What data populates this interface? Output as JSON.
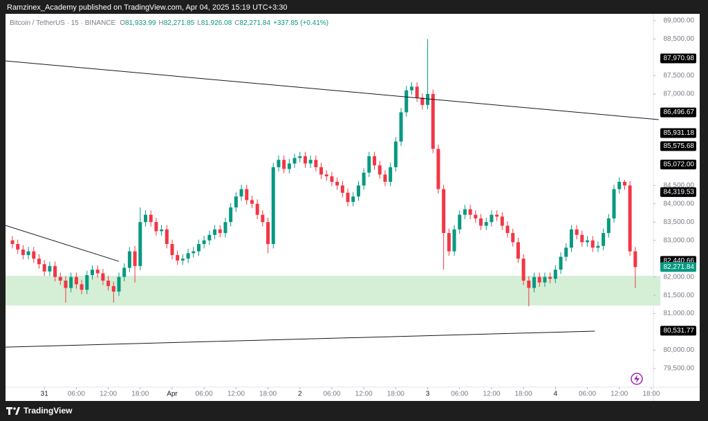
{
  "chart_data": {
    "type": "candlestick",
    "title": "Ramzinex_Academy published on TradingView.com, Apr 04, 2025 15:19 UTC+3:30",
    "symbol": "Bitcoin / TetherUS · 15 · BINANCE",
    "ohlc_legend": [
      {
        "key": "O",
        "value": "81,933.99"
      },
      {
        "key": "H",
        "value": "82,271.85"
      },
      {
        "key": "L",
        "value": "81,926.08"
      },
      {
        "key": "C",
        "value": "82,271.84"
      }
    ],
    "change": "+337.85 (+0.41%)",
    "brand": "TradingView",
    "up_color": "#089981",
    "down_color": "#f23645",
    "xlim": [
      -1.3,
      120.4
    ],
    "ylim": [
      78990,
      89190
    ],
    "xticks": [
      {
        "value": 6,
        "label": "31"
      },
      {
        "value": 12,
        "label": "06:00"
      },
      {
        "value": 18,
        "label": "12:00"
      },
      {
        "value": 24,
        "label": "18:00"
      },
      {
        "value": 30,
        "label": "Apr"
      },
      {
        "value": 36,
        "label": "06:00"
      },
      {
        "value": 42,
        "label": "12:00"
      },
      {
        "value": 48,
        "label": "18:00"
      },
      {
        "value": 54,
        "label": "2"
      },
      {
        "value": 60,
        "label": "06:00"
      },
      {
        "value": 66,
        "label": "12:00"
      },
      {
        "value": 72,
        "label": "18:00"
      },
      {
        "value": 78,
        "label": "3"
      },
      {
        "value": 84,
        "label": "06:00"
      },
      {
        "value": 90,
        "label": "12:00"
      },
      {
        "value": 96,
        "label": "18:00"
      },
      {
        "value": 102,
        "label": "4"
      },
      {
        "value": 108,
        "label": "06:00"
      },
      {
        "value": 114,
        "label": "12:00"
      },
      {
        "value": 120,
        "label": "18:00"
      }
    ],
    "yticks": [
      {
        "value": 89000,
        "label": "89,000.00"
      },
      {
        "value": 88500,
        "label": "88,500.00"
      },
      {
        "value": 87500,
        "label": "87,500.00"
      },
      {
        "value": 87000,
        "label": "87,000.00"
      },
      {
        "value": 84500,
        "label": "84,500.00"
      },
      {
        "value": 84000,
        "label": "84,000.00"
      },
      {
        "value": 83500,
        "label": "83,500.00"
      },
      {
        "value": 83000,
        "label": "83,000.00"
      },
      {
        "value": 82000,
        "label": "82,000.00"
      },
      {
        "value": 81500,
        "label": "81,500.00"
      },
      {
        "value": 81000,
        "label": "81,000.00"
      },
      {
        "value": 80000,
        "label": "80,000.00"
      },
      {
        "value": 79500,
        "label": "79,500.00"
      }
    ],
    "price_labels": [
      {
        "value": 87970.98,
        "label": "87,970.98"
      },
      {
        "value": 86496.67,
        "label": "86,496.67"
      },
      {
        "value": 85931.18,
        "label": "85,931.18"
      },
      {
        "value": 85575.68,
        "label": "85,575.68"
      },
      {
        "value": 85072,
        "label": "85,072.00"
      },
      {
        "value": 84319.53,
        "label": "84,319.53"
      },
      {
        "value": 82440.66,
        "label": "82,440.66"
      },
      {
        "value": 80531.77,
        "label": "80,531.77"
      }
    ],
    "last_price": {
      "value": 82271.84,
      "label": "82,271.84",
      "color": "#089981"
    },
    "zone": {
      "low": 81220,
      "high": 82030,
      "color": "#d4efd6"
    },
    "trendlines": [
      {
        "start": [
          -1.3,
          87904
        ],
        "end": [
          121.4,
          86299
        ]
      },
      {
        "start": [
          -1.3,
          83409
        ],
        "end": [
          20,
          82427
        ]
      },
      {
        "start": [
          -1.3,
          80084
        ],
        "end": [
          109.4,
          80519
        ]
      }
    ],
    "candles": [
      [
        83000,
        83120,
        82780,
        82900
      ],
      [
        82900,
        83020,
        82630,
        82750
      ],
      [
        82750,
        82870,
        82480,
        82600
      ],
      [
        82600,
        82820,
        82480,
        82700
      ],
      [
        82700,
        82820,
        82380,
        82500
      ],
      [
        82500,
        82620,
        82230,
        82350
      ],
      [
        82350,
        82470,
        82030,
        82150
      ],
      [
        82150,
        82420,
        82030,
        82300
      ],
      [
        82300,
        82420,
        81880,
        82000
      ],
      [
        82000,
        82120,
        81780,
        81900
      ],
      [
        81900,
        82020,
        81300,
        81700
      ],
      [
        81700,
        82120,
        81580,
        82000
      ],
      [
        82000,
        82120,
        81680,
        81800
      ],
      [
        81800,
        81920,
        81530,
        81650
      ],
      [
        81650,
        82170,
        81530,
        82050
      ],
      [
        82050,
        82320,
        81930,
        82200
      ],
      [
        82200,
        82320,
        81980,
        82100
      ],
      [
        82100,
        82220,
        81780,
        81900
      ],
      [
        81900,
        82020,
        81630,
        81750
      ],
      [
        81750,
        81870,
        81300,
        81600
      ],
      [
        81600,
        82120,
        81480,
        82000
      ],
      [
        82000,
        82370,
        81880,
        82250
      ],
      [
        82250,
        82820,
        82130,
        82700
      ],
      [
        82700,
        82850,
        81850,
        82300
      ],
      [
        82300,
        83900,
        82180,
        83500
      ],
      [
        83500,
        83820,
        83380,
        83700
      ],
      [
        83700,
        83820,
        83380,
        83500
      ],
      [
        83500,
        83620,
        83130,
        83250
      ],
      [
        83250,
        83420,
        83130,
        83300
      ],
      [
        83300,
        83420,
        82780,
        82900
      ],
      [
        82900,
        83020,
        82480,
        82600
      ],
      [
        82600,
        82720,
        82330,
        82450
      ],
      [
        82450,
        82620,
        82330,
        82500
      ],
      [
        82500,
        82770,
        82380,
        82650
      ],
      [
        82650,
        82820,
        82530,
        82700
      ],
      [
        82700,
        83020,
        82580,
        82900
      ],
      [
        82900,
        83120,
        82780,
        83000
      ],
      [
        83000,
        83270,
        82880,
        83150
      ],
      [
        83150,
        83420,
        83030,
        83300
      ],
      [
        83300,
        83420,
        83080,
        83200
      ],
      [
        83200,
        83620,
        83080,
        83500
      ],
      [
        83500,
        84020,
        83380,
        83900
      ],
      [
        83900,
        84320,
        83780,
        84200
      ],
      [
        84200,
        84520,
        84080,
        84400
      ],
      [
        84400,
        84520,
        83980,
        84100
      ],
      [
        84100,
        84220,
        83880,
        84000
      ],
      [
        84000,
        84120,
        83580,
        83700
      ],
      [
        83700,
        83820,
        83380,
        83500
      ],
      [
        83500,
        83620,
        82650,
        82900
      ],
      [
        82900,
        85120,
        82780,
        85000
      ],
      [
        85000,
        85320,
        84880,
        85200
      ],
      [
        85200,
        85320,
        84830,
        84950
      ],
      [
        84950,
        85220,
        84830,
        85100
      ],
      [
        85100,
        85370,
        84980,
        85250
      ],
      [
        85250,
        85420,
        85130,
        85300
      ],
      [
        85300,
        85420,
        84980,
        85100
      ],
      [
        85100,
        85320,
        84980,
        85200
      ],
      [
        85200,
        85320,
        84880,
        85000
      ],
      [
        85000,
        85120,
        84680,
        84800
      ],
      [
        84800,
        84920,
        84630,
        84750
      ],
      [
        84750,
        84870,
        84480,
        84600
      ],
      [
        84600,
        84720,
        84380,
        84500
      ],
      [
        84500,
        84620,
        84180,
        84300
      ],
      [
        84300,
        84420,
        83930,
        84050
      ],
      [
        84050,
        84320,
        83930,
        84200
      ],
      [
        84200,
        84620,
        84080,
        84500
      ],
      [
        84500,
        84970,
        84380,
        84850
      ],
      [
        84850,
        85420,
        84730,
        85300
      ],
      [
        85300,
        85420,
        84930,
        85050
      ],
      [
        85050,
        85170,
        84680,
        84800
      ],
      [
        84800,
        84920,
        84480,
        84600
      ],
      [
        84600,
        85120,
        84480,
        85000
      ],
      [
        85000,
        85820,
        84880,
        85700
      ],
      [
        85700,
        86620,
        85580,
        86500
      ],
      [
        86500,
        87220,
        86380,
        87100
      ],
      [
        87100,
        87320,
        86980,
        87200
      ],
      [
        87200,
        87320,
        86780,
        86900
      ],
      [
        86900,
        87020,
        86580,
        86700
      ],
      [
        86700,
        88500,
        86580,
        87000
      ],
      [
        87000,
        87120,
        85380,
        85500
      ],
      [
        85500,
        85620,
        84280,
        84400
      ],
      [
        84400,
        84520,
        82200,
        83200
      ],
      [
        83200,
        83320,
        82580,
        82700
      ],
      [
        82700,
        83420,
        82580,
        83300
      ],
      [
        83300,
        83820,
        83180,
        83700
      ],
      [
        83700,
        83970,
        83580,
        83850
      ],
      [
        83850,
        83970,
        83580,
        83700
      ],
      [
        83700,
        83820,
        83480,
        83600
      ],
      [
        83600,
        83720,
        83280,
        83400
      ],
      [
        83400,
        83620,
        83280,
        83500
      ],
      [
        83500,
        83820,
        83380,
        83700
      ],
      [
        83700,
        83820,
        83530,
        83650
      ],
      [
        83650,
        83770,
        83280,
        83400
      ],
      [
        83400,
        83520,
        83080,
        83200
      ],
      [
        83200,
        83320,
        82830,
        82950
      ],
      [
        82950,
        83070,
        82380,
        82500
      ],
      [
        82500,
        82620,
        81780,
        81900
      ],
      [
        81900,
        82020,
        81200,
        81700
      ],
      [
        81700,
        82120,
        81580,
        82000
      ],
      [
        82000,
        82120,
        81730,
        81850
      ],
      [
        81850,
        82120,
        81730,
        82000
      ],
      [
        82000,
        82120,
        81830,
        81950
      ],
      [
        81950,
        82320,
        81830,
        82200
      ],
      [
        82200,
        82670,
        82080,
        82550
      ],
      [
        82550,
        82920,
        82430,
        82800
      ],
      [
        82800,
        83420,
        82680,
        83300
      ],
      [
        83300,
        83420,
        83030,
        83150
      ],
      [
        83150,
        83270,
        82830,
        82950
      ],
      [
        82950,
        83120,
        82830,
        83000
      ],
      [
        83000,
        83120,
        82680,
        82800
      ],
      [
        82800,
        82970,
        82680,
        82850
      ],
      [
        82850,
        83320,
        82730,
        83200
      ],
      [
        83200,
        83720,
        83080,
        83600
      ],
      [
        83600,
        84520,
        83480,
        84400
      ],
      [
        84400,
        84720,
        84280,
        84600
      ],
      [
        84600,
        84650,
        84380,
        84500
      ],
      [
        84500,
        84620,
        82580,
        82700
      ],
      [
        82700,
        82820,
        81700,
        82271.84
      ]
    ]
  }
}
